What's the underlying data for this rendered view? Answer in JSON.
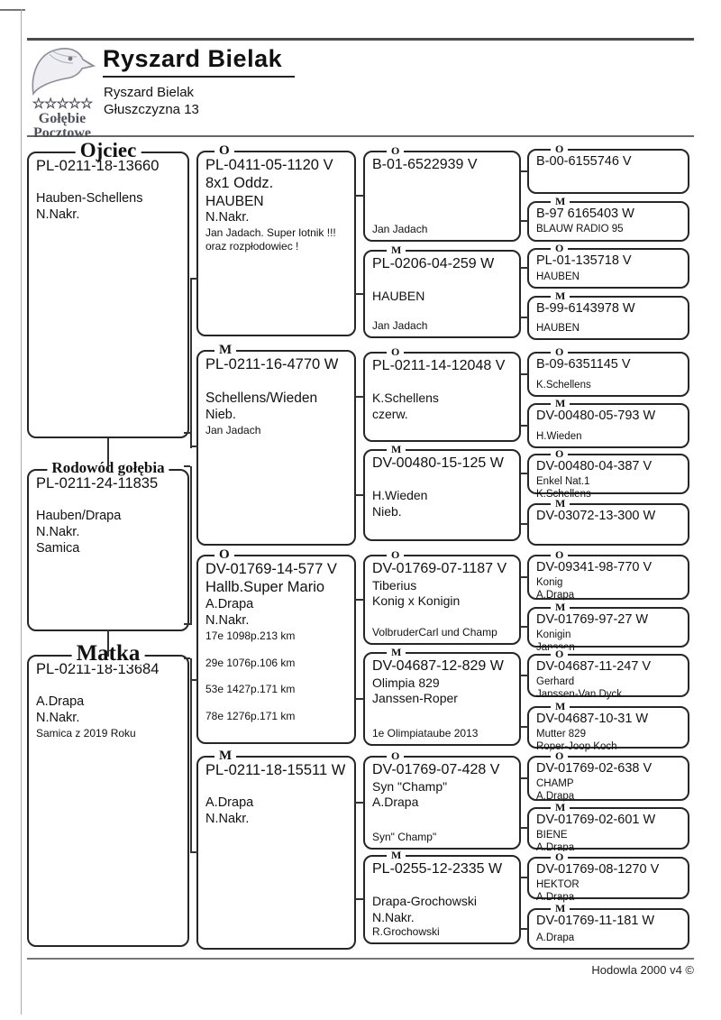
{
  "header": {
    "title": "Ryszard Bielak",
    "owner_name": "Ryszard Bielak",
    "owner_address": "Głuszczyzna 13",
    "logo": {
      "icon": "pigeon-head-icon",
      "stars": "☆☆☆☆☆",
      "caption_line1": "Gołębie",
      "caption_line2": "Pocztowe"
    }
  },
  "footer": {
    "credit": "Hodowla 2000 v4 ©"
  },
  "colors": {
    "box_border": "#262626",
    "text": "#111111",
    "rule": "#555555"
  },
  "pedigree": {
    "father": {
      "legend": "Ojciec",
      "lines": [
        {
          "t": "PL-0211-18-13660",
          "s": "ring"
        },
        {
          "t": "",
          "s": "name"
        },
        {
          "t": "Hauben-Schellens",
          "s": "name"
        },
        {
          "t": "N.Nakr.",
          "s": "name"
        }
      ]
    },
    "subject": {
      "legend": "Rodowód gołębia",
      "lines": [
        {
          "t": "PL-0211-24-11835",
          "s": "ring"
        },
        {
          "t": "",
          "s": "name"
        },
        {
          "t": "Hauben/Drapa",
          "s": "name"
        },
        {
          "t": "N.Nakr.",
          "s": "name"
        },
        {
          "t": "Samica",
          "s": "name"
        }
      ]
    },
    "mother": {
      "legend": "Matka",
      "lines": [
        {
          "t": "PL-0211-18-13684",
          "s": "ring"
        },
        {
          "t": "",
          "s": "name"
        },
        {
          "t": "A.Drapa",
          "s": "name"
        },
        {
          "t": "N.Nakr.",
          "s": "name"
        },
        {
          "t": "Samica z 2019 Roku",
          "s": "small"
        }
      ]
    },
    "generation2": [
      {
        "tag": "O",
        "lines": [
          {
            "t": "PL-0411-05-1120 V",
            "s": "ring"
          },
          {
            "t": "8x1 Oddz.",
            "s": "ring"
          },
          {
            "t": "HAUBEN",
            "s": "ring2"
          },
          {
            "t": "N.Nakr.",
            "s": "name"
          },
          {
            "t": "Jan Jadach. Super lotnik !!!",
            "s": "small"
          },
          {
            "t": "oraz rozpłodowiec !",
            "s": "small"
          }
        ]
      },
      {
        "tag": "M",
        "lines": [
          {
            "t": "PL-0211-16-4770 W",
            "s": "ring"
          },
          {
            "t": "",
            "s": "name"
          },
          {
            "t": "Schellens/Wieden",
            "s": "ring2"
          },
          {
            "t": "Nieb.",
            "s": "name"
          },
          {
            "t": "Jan Jadach",
            "s": "small"
          }
        ]
      },
      {
        "tag": "O",
        "lines": [
          {
            "t": "DV-01769-14-577 V",
            "s": "ring"
          },
          {
            "t": "Hallb.Super Mario",
            "s": "ring"
          },
          {
            "t": "A.Drapa",
            "s": "name"
          },
          {
            "t": "N.Nakr.",
            "s": "name"
          },
          {
            "t": "17e 1098p.213 km",
            "s": "small"
          },
          {
            "t": "",
            "s": "small"
          },
          {
            "t": "29e 1076p.106 km",
            "s": "small"
          },
          {
            "t": "",
            "s": "small"
          },
          {
            "t": "53e 1427p.171 km",
            "s": "small"
          },
          {
            "t": "",
            "s": "small"
          },
          {
            "t": "78e 1276p.171 km",
            "s": "small"
          }
        ]
      },
      {
        "tag": "M",
        "lines": [
          {
            "t": "PL-0211-18-15511 W",
            "s": "ring"
          },
          {
            "t": "",
            "s": "name"
          },
          {
            "t": "A.Drapa",
            "s": "name"
          },
          {
            "t": "N.Nakr.",
            "s": "name"
          }
        ]
      }
    ],
    "generation3": [
      {
        "tag": "O",
        "lines": [
          {
            "t": "B-01-6522939 V",
            "s": "ring"
          },
          {
            "t": "Jan Jadach",
            "s": "bsmall"
          }
        ]
      },
      {
        "tag": "M",
        "lines": [
          {
            "t": "PL-0206-04-259 W",
            "s": "ring"
          },
          {
            "t": "",
            "s": "name"
          },
          {
            "t": "HAUBEN",
            "s": "name"
          },
          {
            "t": "Jan Jadach",
            "s": "bsmall"
          }
        ]
      },
      {
        "tag": "O",
        "lines": [
          {
            "t": "PL-0211-14-12048 V",
            "s": "ring"
          },
          {
            "t": "",
            "s": "name"
          },
          {
            "t": "K.Schellens",
            "s": "name"
          },
          {
            "t": "czerw.",
            "s": "name"
          }
        ]
      },
      {
        "tag": "M",
        "lines": [
          {
            "t": "DV-00480-15-125 W",
            "s": "ring"
          },
          {
            "t": "",
            "s": "name"
          },
          {
            "t": "H.Wieden",
            "s": "name"
          },
          {
            "t": "Nieb.",
            "s": "name"
          }
        ]
      },
      {
        "tag": "O",
        "lines": [
          {
            "t": "DV-01769-07-1187 V",
            "s": "ring"
          },
          {
            "t": "Tiberius",
            "s": "name"
          },
          {
            "t": "Konig x Konigin",
            "s": "name"
          },
          {
            "t": "VolbruderCarl und Champ",
            "s": "bsmall"
          }
        ]
      },
      {
        "tag": "M",
        "lines": [
          {
            "t": "DV-04687-12-829 W",
            "s": "ring"
          },
          {
            "t": "Olimpia 829",
            "s": "name"
          },
          {
            "t": "Janssen-Roper",
            "s": "name"
          },
          {
            "t": "1e Olimpiataube 2013",
            "s": "bsmall"
          }
        ]
      },
      {
        "tag": "O",
        "lines": [
          {
            "t": "DV-01769-07-428 V",
            "s": "ring"
          },
          {
            "t": "Syn \"Champ\"",
            "s": "name"
          },
          {
            "t": "A.Drapa",
            "s": "name"
          },
          {
            "t": "Syn\" Champ\"",
            "s": "bsmall"
          }
        ]
      },
      {
        "tag": "M",
        "lines": [
          {
            "t": "PL-0255-12-2335 W",
            "s": "ring"
          },
          {
            "t": "",
            "s": "name"
          },
          {
            "t": "Drapa-Grochowski",
            "s": "name"
          },
          {
            "t": "N.Nakr.",
            "s": "name"
          },
          {
            "t": "R.Grochowski",
            "s": "small"
          }
        ]
      }
    ],
    "generation4": [
      {
        "tag": "O",
        "lines": [
          {
            "t": "B-00-6155746 V",
            "s": "ring"
          }
        ]
      },
      {
        "tag": "M",
        "lines": [
          {
            "t": "B-97 6165403 W",
            "s": "ring"
          },
          {
            "t": "BLAUW RADIO 95",
            "s": "small"
          }
        ]
      },
      {
        "tag": "O",
        "lines": [
          {
            "t": "PL-01-135718 V",
            "s": "ring"
          },
          {
            "t": "HAUBEN",
            "s": "bsmall"
          }
        ]
      },
      {
        "tag": "M",
        "lines": [
          {
            "t": "B-99-6143978 W",
            "s": "ring"
          },
          {
            "t": "HAUBEN",
            "s": "bsmall"
          }
        ]
      },
      {
        "tag": "O",
        "lines": [
          {
            "t": "B-09-6351145 V",
            "s": "ring"
          },
          {
            "t": "K.Schellens",
            "s": "bsmall"
          }
        ]
      },
      {
        "tag": "M",
        "lines": [
          {
            "t": "DV-00480-05-793 W",
            "s": "ring"
          },
          {
            "t": "H.Wieden",
            "s": "bsmall"
          }
        ]
      },
      {
        "tag": "O",
        "lines": [
          {
            "t": "DV-00480-04-387 V",
            "s": "ring"
          },
          {
            "t": "Enkel Nat.1",
            "s": "small"
          },
          {
            "t": "K.Schellens",
            "s": "small"
          }
        ]
      },
      {
        "tag": "M",
        "lines": [
          {
            "t": "DV-03072-13-300 W",
            "s": "ring"
          }
        ]
      },
      {
        "tag": "O",
        "lines": [
          {
            "t": "DV-09341-98-770 V",
            "s": "ring"
          },
          {
            "t": "Konig",
            "s": "small"
          },
          {
            "t": "A.Drapa",
            "s": "small"
          }
        ]
      },
      {
        "tag": "M",
        "lines": [
          {
            "t": "DV-01769-97-27 W",
            "s": "ring"
          },
          {
            "t": "Konigin",
            "s": "small"
          },
          {
            "t": "Janssen",
            "s": "small"
          }
        ]
      },
      {
        "tag": "O",
        "lines": [
          {
            "t": "DV-04687-11-247 V",
            "s": "ring"
          },
          {
            "t": "Gerhard",
            "s": "small"
          },
          {
            "t": "Janssen-Van Dyck",
            "s": "small"
          }
        ]
      },
      {
        "tag": "M",
        "lines": [
          {
            "t": "DV-04687-10-31 W",
            "s": "ring"
          },
          {
            "t": "Mutter 829",
            "s": "small"
          },
          {
            "t": "Roper-Joop Koch",
            "s": "small"
          }
        ]
      },
      {
        "tag": "O",
        "lines": [
          {
            "t": "DV-01769-02-638 V",
            "s": "ring"
          },
          {
            "t": "CHAMP",
            "s": "small"
          },
          {
            "t": "A.Drapa",
            "s": "small"
          }
        ]
      },
      {
        "tag": "M",
        "lines": [
          {
            "t": "DV-01769-02-601 W",
            "s": "ring"
          },
          {
            "t": "BIENE",
            "s": "small"
          },
          {
            "t": "A.Drapa",
            "s": "small"
          }
        ]
      },
      {
        "tag": "O",
        "lines": [
          {
            "t": "DV-01769-08-1270 V",
            "s": "ring"
          },
          {
            "t": "HEKTOR",
            "s": "small"
          },
          {
            "t": "A.Drapa",
            "s": "small"
          }
        ]
      },
      {
        "tag": "M",
        "lines": [
          {
            "t": "DV-01769-11-181 W",
            "s": "ring"
          },
          {
            "t": "A.Drapa",
            "s": "bsmall"
          }
        ]
      }
    ]
  }
}
